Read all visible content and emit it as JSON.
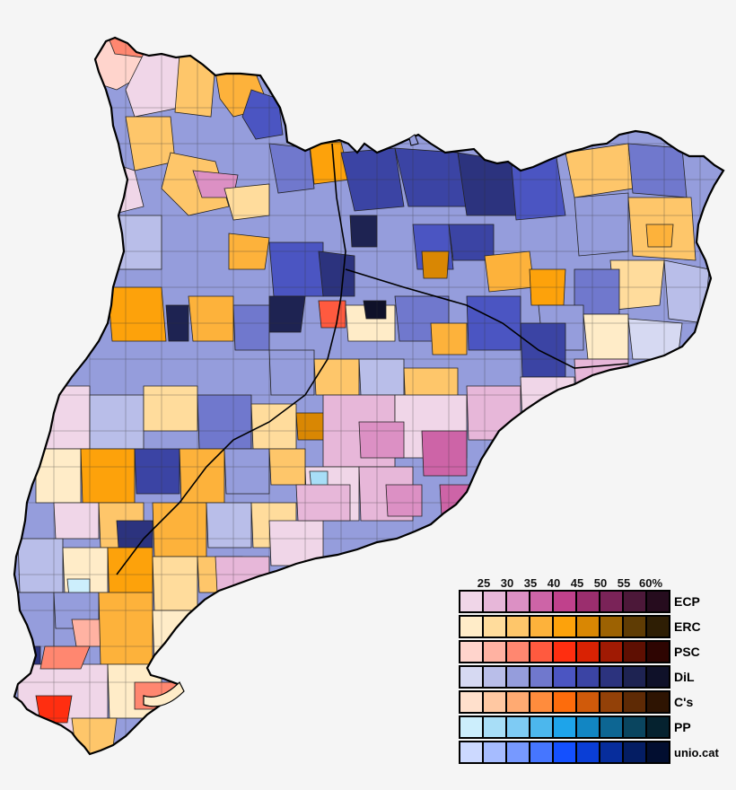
{
  "map": {
    "subject": "Catalonia municipalities election results",
    "background": "#f5f5f5",
    "border_color": "#000000"
  },
  "legend": {
    "thresholds": [
      "25",
      "30",
      "35",
      "40",
      "45",
      "50",
      "55",
      "60%"
    ],
    "parties": [
      {
        "label": "ECP",
        "colors": [
          "#f0d6e8",
          "#e7b7d9",
          "#dc90c4",
          "#cd64a7",
          "#c0418c",
          "#9b2e6e",
          "#7a2358",
          "#4c1839",
          "#260c1e"
        ]
      },
      {
        "label": "ERC",
        "colors": [
          "#ffecc8",
          "#ffdc9c",
          "#fec66a",
          "#fdb23b",
          "#fda20b",
          "#d98703",
          "#9d6202",
          "#5f3c04",
          "#2e1e04"
        ]
      },
      {
        "label": "PSC",
        "colors": [
          "#ffd4cc",
          "#ffb2a2",
          "#ff8770",
          "#ff5a3f",
          "#ff2e10",
          "#d92203",
          "#a01a03",
          "#5e0f02",
          "#2e0502"
        ]
      },
      {
        "label": "DiL",
        "colors": [
          "#d6d9f2",
          "#b9bee9",
          "#959ddc",
          "#7078cd",
          "#4b55c2",
          "#3b44a4",
          "#2c337e",
          "#1e2352",
          "#0f1129"
        ]
      },
      {
        "label": "C's",
        "colors": [
          "#ffe0cc",
          "#ffc8a2",
          "#ffaa72",
          "#ff8c3d",
          "#fd6c0c",
          "#d05a0a",
          "#934108",
          "#5e2a05",
          "#2e1402"
        ]
      },
      {
        "label": "PP",
        "colors": [
          "#cceefc",
          "#a8def7",
          "#7ecbf4",
          "#4cb7ed",
          "#1ea4ea",
          "#1286c3",
          "#0d6693",
          "#0a455f",
          "#05222f"
        ]
      },
      {
        "label": "unio.cat",
        "colors": [
          "#ccd9ff",
          "#a6bcff",
          "#7799ff",
          "#4676ff",
          "#1450ff",
          "#0a3ed6",
          "#072d9c",
          "#041d63",
          "#020e30"
        ]
      }
    ]
  }
}
